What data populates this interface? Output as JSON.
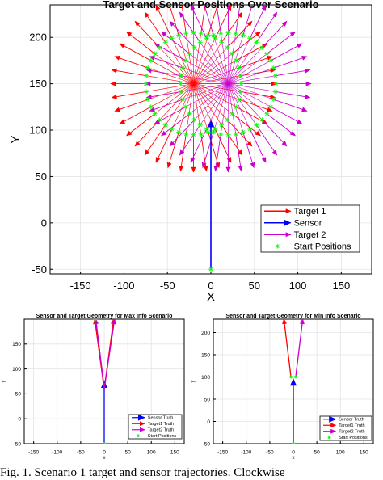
{
  "chart_data": [
    {
      "type": "line",
      "title": "Target and Sensor Positions Over Scenario",
      "xlabel": "X",
      "ylabel": "Y",
      "xlim": [
        -185,
        185
      ],
      "ylim": [
        -55,
        235
      ],
      "xticks": [
        -150,
        -100,
        -50,
        0,
        50,
        100,
        150
      ],
      "yticks": [
        -50,
        0,
        50,
        100,
        150,
        200
      ],
      "grid": true,
      "legend_position": "bottom-right",
      "series": [
        {
          "name": "Target 1",
          "color": "#ff0000",
          "kind": "radial-arrows",
          "center": [
            -20,
            150
          ],
          "radius": 95,
          "start_radius": 55,
          "arrow_count": 40
        },
        {
          "name": "Sensor",
          "color": "#0000ff",
          "kind": "arrow",
          "x": [
            0,
            0
          ],
          "y": [
            -50,
            110
          ]
        },
        {
          "name": "Target 2",
          "color": "#cc00cc",
          "kind": "radial-arrows",
          "center": [
            20,
            150
          ],
          "radius": 95,
          "start_radius": 55,
          "arrow_count": 40
        },
        {
          "name": "Start Positions",
          "color": "#00ff00",
          "kind": "markers",
          "marker": "*"
        }
      ]
    },
    {
      "type": "line",
      "title": "Sensor and Target Geometry for Max Info Scenario",
      "xlabel": "x",
      "ylabel": "y",
      "xlim": [
        -170,
        170
      ],
      "ylim": [
        -50,
        200
      ],
      "xticks": [
        -150,
        -100,
        -50,
        0,
        50,
        100,
        150
      ],
      "yticks": [
        -50,
        0,
        50,
        100,
        150
      ],
      "grid": true,
      "legend_position": "bottom-right",
      "series": [
        {
          "name": "Sensor Truth",
          "color": "#0000ff",
          "x": [
            0,
            0
          ],
          "y": [
            -50,
            75
          ]
        },
        {
          "name": "Target1 Truth",
          "color": "#ff0000",
          "x": [
            -20,
            0,
            20
          ],
          "y": [
            200,
            60,
            200
          ]
        },
        {
          "name": "Target2 Truth",
          "color": "#cc00cc",
          "x": [
            -18,
            0,
            22
          ],
          "y": [
            200,
            60,
            200
          ]
        },
        {
          "name": "Start Positions",
          "color": "#00ff00",
          "marker": "*"
        }
      ]
    },
    {
      "type": "line",
      "title": "Sensor and Target Geometry for Min Info Scenario",
      "xlabel": "x",
      "ylabel": "y",
      "xlim": [
        -170,
        170
      ],
      "ylim": [
        -50,
        230
      ],
      "xticks": [
        -150,
        -100,
        -50,
        0,
        50,
        100,
        150
      ],
      "yticks": [
        -50,
        0,
        50,
        100,
        150,
        200
      ],
      "grid": true,
      "legend_position": "bottom-right",
      "series": [
        {
          "name": "Sensor Truth",
          "color": "#0000ff",
          "x": [
            0,
            0
          ],
          "y": [
            -50,
            95
          ]
        },
        {
          "name": "Target1 Truth",
          "color": "#ff0000",
          "x": [
            -5,
            -20
          ],
          "y": [
            100,
            230
          ]
        },
        {
          "name": "Target2 Truth",
          "color": "#cc00cc",
          "x": [
            5,
            20
          ],
          "y": [
            100,
            230
          ]
        },
        {
          "name": "Start Positions",
          "color": "#00ff00",
          "marker": "*"
        }
      ]
    }
  ],
  "caption": "Fig. 1.  Scenario 1 target and sensor trajectories. Clockwise"
}
